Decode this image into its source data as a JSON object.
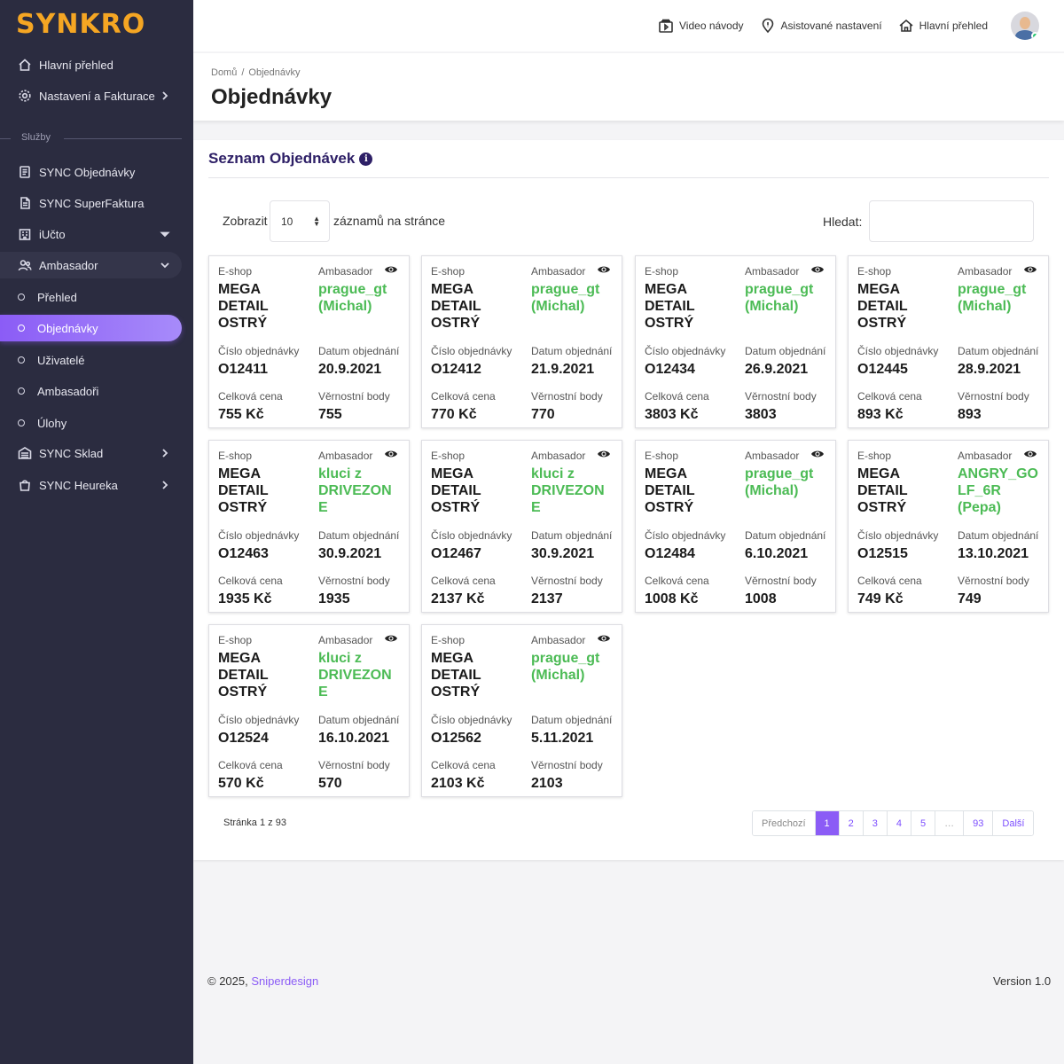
{
  "sidebar": {
    "logo": "SYNKRO",
    "top_items": [
      {
        "label": "Hlavní přehled",
        "icon": "home-icon"
      },
      {
        "label": "Nastavení a Fakturace",
        "icon": "gear-icon"
      }
    ],
    "section_label": "Služby",
    "items": [
      {
        "label": "SYNC Objednávky",
        "icon": "list-icon"
      },
      {
        "label": "SYNC SuperFaktura",
        "icon": "document-icon"
      },
      {
        "label": "iUčto",
        "icon": "building-icon"
      },
      {
        "label": "Ambasador",
        "icon": "users-icon"
      },
      {
        "label": "Přehled"
      },
      {
        "label": "Objednávky"
      },
      {
        "label": "Uživatelé"
      },
      {
        "label": "Ambasadoři"
      },
      {
        "label": "Úlohy"
      },
      {
        "label": "SYNC Sklad",
        "icon": "warehouse-icon"
      },
      {
        "label": "SYNC Heureka",
        "icon": "bag-icon"
      }
    ]
  },
  "topbar": {
    "links": [
      {
        "label": "Video návody",
        "icon": "video-icon"
      },
      {
        "label": "Asistované nastavení",
        "icon": "location-pin-icon"
      },
      {
        "label": "Hlavní přehled",
        "icon": "home-icon"
      }
    ]
  },
  "header": {
    "breadcrumb": [
      "Domů",
      "Objednávky"
    ],
    "breadcrumb_sep": "/",
    "title": "Objednávky"
  },
  "list": {
    "title": "Seznam Objednávek",
    "info_glyph": "i",
    "length_label": "Zobrazit",
    "length_value": "10",
    "length_suffix": "záznamů na stránce",
    "search_label": "Hledat:",
    "search_value": ""
  },
  "card_labels": {
    "eshop": "E-shop",
    "ambassador": "Ambasador",
    "order_no": "Číslo objednávky",
    "order_date": "Datum objednání",
    "total": "Celková cena",
    "points": "Věrnostní body"
  },
  "orders": [
    {
      "eshop": [
        "MEGA",
        "DETAIL",
        "OSTRÝ"
      ],
      "ambassador": [
        "prague_gt",
        "(Michal)"
      ],
      "number": "O12411",
      "date": "20.9.2021",
      "total": "755 Kč",
      "points": "755"
    },
    {
      "eshop": [
        "MEGA",
        "DETAIL",
        "OSTRÝ"
      ],
      "ambassador": [
        "prague_gt",
        "(Michal)"
      ],
      "number": "O12412",
      "date": "21.9.2021",
      "total": "770 Kč",
      "points": "770"
    },
    {
      "eshop": [
        "MEGA",
        "DETAIL",
        "OSTRÝ"
      ],
      "ambassador": [
        "prague_gt",
        "(Michal)"
      ],
      "number": "O12434",
      "date": "26.9.2021",
      "total": "3803 Kč",
      "points": "3803"
    },
    {
      "eshop": [
        "MEGA",
        "DETAIL",
        "OSTRÝ"
      ],
      "ambassador": [
        "prague_gt",
        "(Michal)"
      ],
      "number": "O12445",
      "date": "28.9.2021",
      "total": "893 Kč",
      "points": "893"
    },
    {
      "eshop": [
        "MEGA",
        "DETAIL",
        "OSTRÝ"
      ],
      "ambassador": [
        "kluci z",
        "DRIVEZON",
        "E"
      ],
      "number": "O12463",
      "date": "30.9.2021",
      "total": "1935 Kč",
      "points": "1935"
    },
    {
      "eshop": [
        "MEGA",
        "DETAIL",
        "OSTRÝ"
      ],
      "ambassador": [
        "kluci z",
        "DRIVEZON",
        "E"
      ],
      "number": "O12467",
      "date": "30.9.2021",
      "total": "2137 Kč",
      "points": "2137"
    },
    {
      "eshop": [
        "MEGA",
        "DETAIL",
        "OSTRÝ"
      ],
      "ambassador": [
        "prague_gt",
        "(Michal)"
      ],
      "number": "O12484",
      "date": "6.10.2021",
      "total": "1008 Kč",
      "points": "1008"
    },
    {
      "eshop": [
        "MEGA",
        "DETAIL",
        "OSTRÝ"
      ],
      "ambassador": [
        "ANGRY_GO",
        "LF_6R",
        "(Pepa)"
      ],
      "number": "O12515",
      "date": "13.10.2021",
      "total": "749 Kč",
      "points": "749"
    },
    {
      "eshop": [
        "MEGA",
        "DETAIL",
        "OSTRÝ"
      ],
      "ambassador": [
        "kluci z",
        "DRIVEZON",
        "E"
      ],
      "number": "O12524",
      "date": "16.10.2021",
      "total": "570 Kč",
      "points": "570"
    },
    {
      "eshop": [
        "MEGA",
        "DETAIL",
        "OSTRÝ"
      ],
      "ambassador": [
        "prague_gt",
        "(Michal)"
      ],
      "number": "O12562",
      "date": "5.11.2021",
      "total": "2103 Kč",
      "points": "2103"
    }
  ],
  "pagination": {
    "info": "Stránka 1 z 93",
    "prev": "Předchozí",
    "pages": [
      "1",
      "2",
      "3",
      "4",
      "5",
      "…",
      "93"
    ],
    "current": "1",
    "next": "Další"
  },
  "footer": {
    "copyright": "© 2025,",
    "link": "Sniperdesign",
    "version": "Version 1.0"
  },
  "colors": {
    "accent": "#8b5cf6",
    "logo": "#f5a623",
    "sidebar_bg": "#2b2c40",
    "ambassador_text": "#4cbb55",
    "title_text": "#2d1f66"
  }
}
